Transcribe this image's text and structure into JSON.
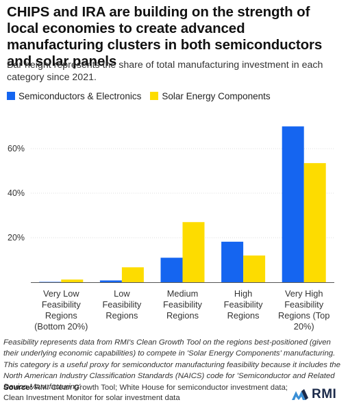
{
  "title": "CHIPS and IRA are building on the strength of local economies to create advanced manufacturing clusters in both semiconductors and solar panels",
  "subtitle": "Bar height represents the share of total manufacturing investment in each category since 2021.",
  "note": "Feasibility represents data from RMI's Clean Growth Tool on the regions best-positioned (given their underlying economic capabilities) to compete in 'Solar Energy Components' manufacturing. This category is a useful proxy for semiconductor manufacturing feasibility because it includes the North American Industry Classification Standards (NAICS) code for 'Semiconductor and Related Device Manufacturing' .",
  "source": {
    "label": "Source:",
    "text": " RMI Clean Growth Tool; White House for semiconductor investment data; Clean Investment Monitor for solar investment data"
  },
  "logo": {
    "text": "RMI",
    "icon": "rmi-logo-icon"
  },
  "colors": {
    "semiconductors": "#1565f0",
    "solar": "#fddc00",
    "axis": "#555555",
    "grid": "#dedede"
  },
  "chart_data": {
    "type": "bar",
    "categories": [
      [
        "Very Low",
        "Feasibility",
        "Regions",
        "(Bottom 20%)"
      ],
      [
        "Low",
        "Feasibility",
        "Regions"
      ],
      [
        "Medium",
        "Feasibility",
        "Regions"
      ],
      [
        "High",
        "Feasibility",
        "Regions"
      ],
      [
        "Very High",
        "Feasibility",
        "Regions (Top",
        "20%)"
      ]
    ],
    "series": [
      {
        "name": "Semiconductors & Electronics",
        "color": "#1565f0",
        "values": [
          0.1,
          0.8,
          11,
          18.2,
          70
        ]
      },
      {
        "name": "Solar Energy Components",
        "color": "#fddc00",
        "values": [
          1.2,
          6.7,
          27,
          12,
          53.5
        ]
      }
    ],
    "y_ticks": [
      20,
      40,
      60
    ],
    "y_tick_suffix": "%",
    "ylim": [
      0,
      70
    ],
    "grid": "horizontal",
    "legend": "top-left"
  }
}
